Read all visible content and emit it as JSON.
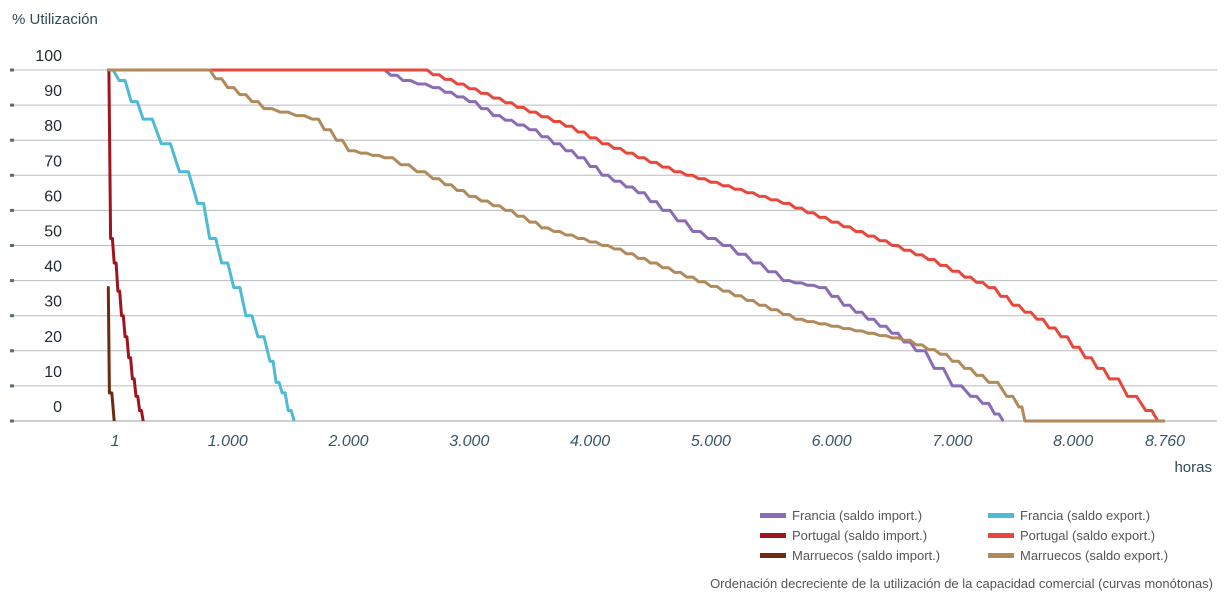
{
  "chart_data": {
    "type": "line",
    "ylabel": "% Utilización",
    "xlabel": "horas",
    "ylim": [
      0,
      100
    ],
    "yticks": [
      "100",
      "90",
      "80",
      "70",
      "60",
      "50",
      "40",
      "30",
      "20",
      "10",
      "0"
    ],
    "xticks": [
      "1",
      "1.000",
      "2.000",
      "3.000",
      "4.000",
      "5.000",
      "6.000",
      "7.000",
      "8.000",
      "8.760"
    ],
    "xtick_values": [
      1,
      1000,
      2000,
      3000,
      4000,
      5000,
      6000,
      7000,
      8000,
      8760
    ],
    "grid": true,
    "legend_position": "bottom-right",
    "series": [
      {
        "name": "Francia (saldo import.)",
        "color": "#8a6bb5",
        "x": [
          1,
          2250,
          2450,
          2700,
          3000,
          3200,
          3500,
          3700,
          3900,
          4100,
          4400,
          4600,
          4850,
          5100,
          5350,
          5600,
          5900,
          6100,
          6300,
          6500,
          6700,
          6850,
          7000,
          7150,
          7250,
          7350,
          7420
        ],
        "y": [
          100,
          100,
          97,
          95,
          91,
          87,
          83,
          79,
          75,
          70,
          65,
          60,
          54,
          50,
          45,
          40,
          38,
          33,
          29,
          25,
          20,
          15,
          10,
          7,
          5,
          2,
          0
        ]
      },
      {
        "name": "Francia (saldo export.)",
        "color": "#4dbbd5",
        "x": [
          1,
          100,
          200,
          300,
          450,
          600,
          750,
          850,
          950,
          1050,
          1150,
          1250,
          1350,
          1400,
          1450,
          1500,
          1550
        ],
        "y": [
          100,
          97,
          91,
          86,
          79,
          71,
          62,
          52,
          45,
          38,
          30,
          24,
          17,
          11,
          8,
          3,
          0
        ]
      },
      {
        "name": "Portugal (saldo import.)",
        "color": "#a0141e",
        "x": [
          1,
          30,
          60,
          90,
          120,
          150,
          180,
          210,
          240,
          270,
          300
        ],
        "y": [
          100,
          52,
          45,
          37,
          30,
          24,
          18,
          12,
          7,
          3,
          0
        ]
      },
      {
        "name": "Portugal (saldo export.)",
        "color": "#e8483b",
        "x": [
          1,
          2600,
          2900,
          3200,
          3500,
          3800,
          4100,
          4400,
          4700,
          5000,
          5300,
          5600,
          5900,
          6200,
          6500,
          6800,
          7100,
          7300,
          7500,
          7700,
          7900,
          8100,
          8300,
          8450,
          8600,
          8700
        ],
        "y": [
          100,
          100,
          96,
          92,
          88,
          84,
          79,
          75,
          71,
          68,
          65,
          62,
          58,
          54,
          50,
          46,
          41,
          38,
          33,
          29,
          24,
          18,
          12,
          7,
          3,
          0
        ]
      },
      {
        "name": "Marruecos (saldo import.)",
        "color": "#6e2a10",
        "x": [
          1,
          20,
          60
        ],
        "y": [
          38,
          8,
          0
        ]
      },
      {
        "name": "Marruecos (saldo export.)",
        "color": "#b08a5a",
        "x": [
          1,
          800,
          1000,
          1300,
          1700,
          2000,
          2300,
          2700,
          3000,
          3300,
          3600,
          3900,
          4200,
          4500,
          4800,
          5100,
          5400,
          5700,
          6000,
          6300,
          6600,
          6900,
          7100,
          7300,
          7450,
          7550,
          7600,
          8760
        ],
        "y": [
          100,
          100,
          95,
          89,
          86,
          77,
          75,
          69,
          64,
          60,
          55,
          52,
          49,
          45,
          41,
          37,
          33,
          29,
          27,
          25,
          23,
          19,
          15,
          11,
          7,
          4,
          0,
          0
        ]
      }
    ]
  },
  "legend": {
    "items": [
      {
        "label": "Francia (saldo import.)",
        "color": "#8a6bb5"
      },
      {
        "label": "Francia (saldo export.)",
        "color": "#4dbbd5"
      },
      {
        "label": "Portugal (saldo import.)",
        "color": "#a0141e"
      },
      {
        "label": "Portugal (saldo export.)",
        "color": "#e8483b"
      },
      {
        "label": "Marruecos (saldo import.)",
        "color": "#6e2a10"
      },
      {
        "label": "Marruecos (saldo export.)",
        "color": "#b08a5a"
      }
    ]
  },
  "note": "Ordenación decreciente de la utilización de la capacidad comercial (curvas monótonas)"
}
